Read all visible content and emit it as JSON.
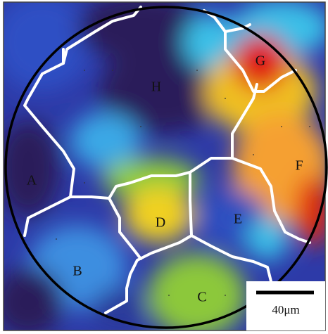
{
  "grain_labels": [
    "A",
    "B",
    "C",
    "D",
    "E",
    "F",
    "G",
    "H"
  ],
  "scale_bar": {
    "label": "40μm"
  }
}
